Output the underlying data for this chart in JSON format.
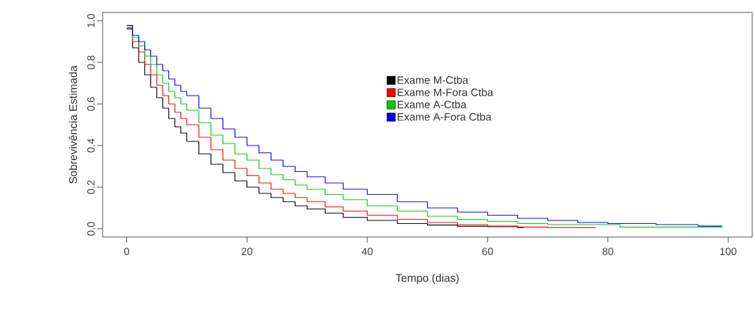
{
  "chart_data": {
    "type": "step",
    "xlabel": "Tempo (dias)",
    "ylabel": "Sobrevivência Estimada",
    "xlim": [
      -4,
      104
    ],
    "ylim": [
      -0.04,
      1.04
    ],
    "xticks": [
      0,
      20,
      40,
      60,
      80,
      100
    ],
    "yticks": [
      {
        "value": 0,
        "label": "0.0"
      },
      {
        "value": 0.2,
        "label": "0.2"
      },
      {
        "value": 0.4,
        "label": "0.4"
      },
      {
        "value": 0.6,
        "label": "0.6"
      },
      {
        "value": 0.8,
        "label": "0.8"
      },
      {
        "value": 1,
        "label": "1.0"
      }
    ],
    "grid": false,
    "legend": "top",
    "marker": "none",
    "line_style": "solid",
    "series": [
      {
        "name": "Exame M-Ctba",
        "color": "#000000",
        "x": [
          0,
          1,
          2,
          3,
          4,
          5,
          6,
          7,
          8,
          9,
          10,
          12,
          14,
          16,
          18,
          20,
          22,
          24,
          26,
          28,
          30,
          33,
          36,
          40,
          45,
          50,
          55,
          60,
          65,
          66
        ],
        "values": [
          0.96,
          0.87,
          0.8,
          0.74,
          0.68,
          0.63,
          0.58,
          0.53,
          0.49,
          0.46,
          0.42,
          0.36,
          0.31,
          0.27,
          0.23,
          0.2,
          0.17,
          0.15,
          0.13,
          0.11,
          0.095,
          0.075,
          0.055,
          0.04,
          0.025,
          0.018,
          0.012,
          0.01,
          0.005,
          0.005
        ]
      },
      {
        "name": "Exame M-Fora Ctba",
        "color": "#ff0000",
        "x": [
          0,
          1,
          2,
          3,
          4,
          5,
          6,
          7,
          8,
          9,
          10,
          12,
          14,
          16,
          18,
          20,
          22,
          24,
          26,
          28,
          30,
          33,
          36,
          40,
          45,
          50,
          55,
          60,
          65,
          70,
          78
        ],
        "values": [
          0.965,
          0.9,
          0.85,
          0.79,
          0.74,
          0.69,
          0.64,
          0.6,
          0.56,
          0.53,
          0.5,
          0.44,
          0.38,
          0.33,
          0.29,
          0.255,
          0.22,
          0.19,
          0.17,
          0.15,
          0.13,
          0.105,
          0.085,
          0.065,
          0.045,
          0.03,
          0.02,
          0.013,
          0.008,
          0.005,
          0.005
        ]
      },
      {
        "name": "Exame A-Ctba",
        "color": "#00cd00",
        "x": [
          0,
          1,
          2,
          3,
          4,
          5,
          6,
          7,
          8,
          9,
          10,
          12,
          14,
          16,
          18,
          20,
          22,
          24,
          26,
          28,
          30,
          33,
          36,
          40,
          45,
          50,
          55,
          60,
          65,
          70,
          82,
          99
        ],
        "values": [
          0.97,
          0.92,
          0.88,
          0.83,
          0.79,
          0.74,
          0.7,
          0.66,
          0.63,
          0.6,
          0.57,
          0.51,
          0.45,
          0.41,
          0.36,
          0.33,
          0.29,
          0.26,
          0.235,
          0.21,
          0.19,
          0.165,
          0.14,
          0.11,
          0.085,
          0.06,
          0.045,
          0.035,
          0.025,
          0.02,
          0.008,
          0.008
        ]
      },
      {
        "name": "Exame A-Fora Ctba",
        "color": "#0000ff",
        "x": [
          0,
          1,
          2,
          3,
          4,
          5,
          6,
          7,
          8,
          9,
          10,
          12,
          14,
          16,
          18,
          20,
          22,
          24,
          26,
          28,
          30,
          33,
          36,
          40,
          45,
          50,
          55,
          60,
          65,
          70,
          75,
          80,
          88,
          95,
          99
        ],
        "values": [
          0.978,
          0.93,
          0.9,
          0.86,
          0.83,
          0.79,
          0.76,
          0.72,
          0.69,
          0.66,
          0.64,
          0.58,
          0.53,
          0.48,
          0.44,
          0.4,
          0.365,
          0.33,
          0.3,
          0.275,
          0.25,
          0.22,
          0.19,
          0.165,
          0.13,
          0.1,
          0.08,
          0.065,
          0.05,
          0.04,
          0.03,
          0.025,
          0.02,
          0.013,
          0.013
        ]
      }
    ]
  }
}
